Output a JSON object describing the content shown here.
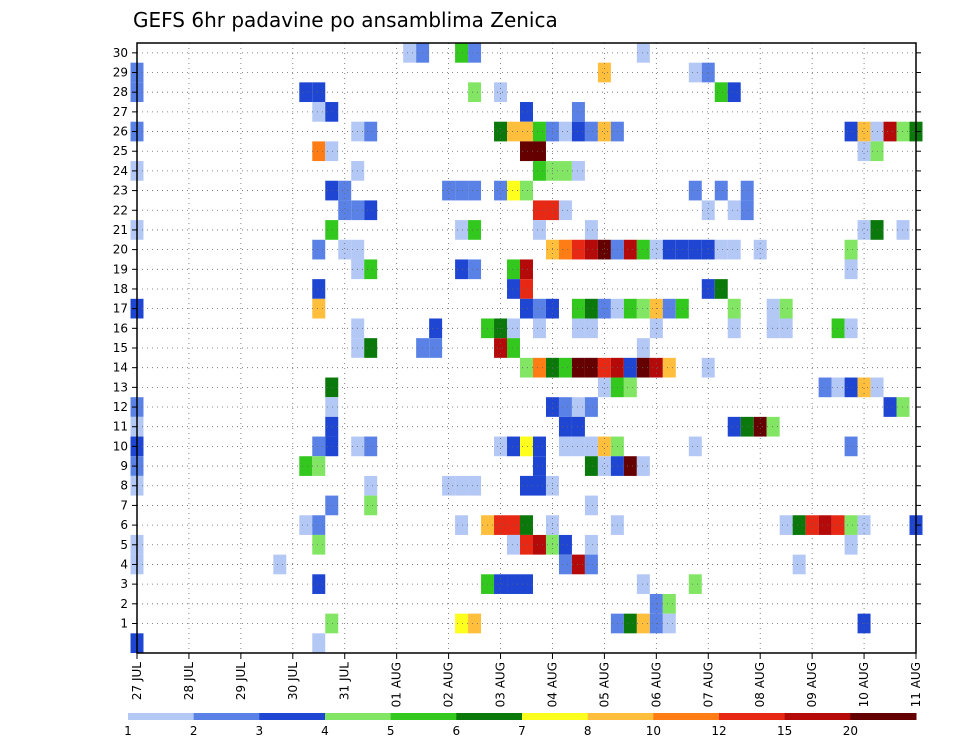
{
  "chart_data": {
    "type": "heatmap",
    "title": "GEFS 6hr padavine po ansamblima Zenica",
    "y_ticks": [
      "1",
      "2",
      "3",
      "4",
      "5",
      "6",
      "7",
      "8",
      "9",
      "10",
      "11",
      "12",
      "13",
      "14",
      "15",
      "16",
      "17",
      "18",
      "19",
      "20",
      "21",
      "22",
      "23",
      "24",
      "25",
      "26",
      "27",
      "28",
      "29",
      "30"
    ],
    "x_ticks": [
      "27 JUL",
      "28 JUL",
      "29 JUL",
      "30 JUL",
      "31 JUL",
      "01 AUG",
      "02 AUG",
      "03 AUG",
      "04 AUG",
      "05 AUG",
      "06 AUG",
      "07 AUG",
      "08 AUG",
      "09 AUG",
      "10 AUG",
      "11 AUG"
    ],
    "x_range": [
      "27 JUL 00Z",
      "11 AUG 00Z"
    ],
    "y_range": [
      1,
      30
    ],
    "steps_per_day": 4,
    "grid": true,
    "colorbar": {
      "labels": [
        "1",
        "2",
        "3",
        "4",
        "5",
        "6",
        "7",
        "8",
        "10",
        "12",
        "15",
        "20"
      ],
      "colors": [
        "#b4c8f5",
        "#5a82e6",
        "#1e46d2",
        "#82e664",
        "#32c81e",
        "#0a780a",
        "#ffff1e",
        "#ffbe3c",
        "#ff7d14",
        "#e62814",
        "#b40a0a",
        "#640000"
      ]
    },
    "cells": [
      {
        "m": 30,
        "t": [
          [
            21,
            1
          ],
          [
            22,
            2
          ],
          [
            25,
            5
          ],
          [
            26,
            2
          ],
          [
            39,
            1
          ]
        ]
      },
      {
        "m": 29,
        "t": [
          [
            0,
            2
          ],
          [
            36,
            8
          ],
          [
            43,
            1
          ],
          [
            44,
            2
          ]
        ]
      },
      {
        "m": 28,
        "t": [
          [
            0,
            2
          ],
          [
            13,
            3
          ],
          [
            14,
            3
          ],
          [
            26,
            4
          ],
          [
            28,
            1
          ],
          [
            45,
            5
          ],
          [
            46,
            3
          ]
        ]
      },
      {
        "m": 27,
        "t": [
          [
            14,
            1
          ],
          [
            15,
            3
          ],
          [
            30,
            3
          ],
          [
            34,
            2
          ]
        ]
      },
      {
        "m": 26,
        "t": [
          [
            0,
            2
          ],
          [
            17,
            1
          ],
          [
            18,
            2
          ],
          [
            28,
            6
          ],
          [
            29,
            8
          ],
          [
            30,
            8
          ],
          [
            31,
            5
          ],
          [
            32,
            2
          ],
          [
            33,
            1
          ],
          [
            34,
            3
          ],
          [
            35,
            2
          ],
          [
            36,
            8
          ],
          [
            37,
            2
          ],
          [
            55,
            3
          ],
          [
            56,
            8
          ],
          [
            57,
            1
          ],
          [
            58,
            11
          ],
          [
            59,
            4
          ],
          [
            60,
            6
          ]
        ]
      },
      {
        "m": 25,
        "t": [
          [
            14,
            9
          ],
          [
            15,
            1
          ],
          [
            30,
            12
          ],
          [
            31,
            12
          ],
          [
            56,
            1
          ],
          [
            57,
            4
          ]
        ]
      },
      {
        "m": 24,
        "t": [
          [
            0,
            1
          ],
          [
            17,
            1
          ],
          [
            31,
            5
          ],
          [
            32,
            4
          ],
          [
            33,
            4
          ],
          [
            34,
            1
          ]
        ]
      },
      {
        "m": 23,
        "t": [
          [
            15,
            3
          ],
          [
            16,
            2
          ],
          [
            24,
            2
          ],
          [
            25,
            2
          ],
          [
            26,
            2
          ],
          [
            28,
            2
          ],
          [
            29,
            7
          ],
          [
            30,
            4
          ],
          [
            43,
            2
          ],
          [
            45,
            2
          ],
          [
            47,
            2
          ]
        ]
      },
      {
        "m": 22,
        "t": [
          [
            16,
            2
          ],
          [
            17,
            2
          ],
          [
            18,
            3
          ],
          [
            31,
            10
          ],
          [
            32,
            10
          ],
          [
            33,
            1
          ],
          [
            44,
            1
          ],
          [
            46,
            1
          ],
          [
            47,
            2
          ]
        ]
      },
      {
        "m": 21,
        "t": [
          [
            0,
            1
          ],
          [
            15,
            5
          ],
          [
            25,
            1
          ],
          [
            26,
            5
          ],
          [
            31,
            1
          ],
          [
            35,
            1
          ],
          [
            56,
            1
          ],
          [
            57,
            6
          ],
          [
            59,
            1
          ]
        ]
      },
      {
        "m": 20,
        "t": [
          [
            14,
            2
          ],
          [
            16,
            1
          ],
          [
            17,
            1
          ],
          [
            32,
            8
          ],
          [
            33,
            9
          ],
          [
            34,
            10
          ],
          [
            35,
            11
          ],
          [
            36,
            12
          ],
          [
            37,
            2
          ],
          [
            38,
            11
          ],
          [
            39,
            5
          ],
          [
            40,
            1
          ],
          [
            41,
            3
          ],
          [
            42,
            3
          ],
          [
            43,
            3
          ],
          [
            44,
            3
          ],
          [
            45,
            1
          ],
          [
            46,
            1
          ],
          [
            48,
            1
          ],
          [
            55,
            4
          ]
        ]
      },
      {
        "m": 19,
        "t": [
          [
            17,
            1
          ],
          [
            18,
            5
          ],
          [
            25,
            3
          ],
          [
            26,
            2
          ],
          [
            29,
            5
          ],
          [
            30,
            11
          ],
          [
            55,
            1
          ]
        ]
      },
      {
        "m": 18,
        "t": [
          [
            14,
            3
          ],
          [
            29,
            3
          ],
          [
            30,
            10
          ],
          [
            44,
            3
          ],
          [
            45,
            6
          ]
        ]
      },
      {
        "m": 17,
        "t": [
          [
            0,
            3
          ],
          [
            14,
            8
          ],
          [
            30,
            3
          ],
          [
            31,
            2
          ],
          [
            32,
            3
          ],
          [
            34,
            5
          ],
          [
            35,
            6
          ],
          [
            36,
            2
          ],
          [
            37,
            1
          ],
          [
            38,
            5
          ],
          [
            39,
            4
          ],
          [
            40,
            8
          ],
          [
            41,
            2
          ],
          [
            42,
            5
          ],
          [
            46,
            4
          ],
          [
            49,
            1
          ],
          [
            50,
            4
          ]
        ]
      },
      {
        "m": 16,
        "t": [
          [
            17,
            1
          ],
          [
            23,
            3
          ],
          [
            27,
            5
          ],
          [
            28,
            6
          ],
          [
            29,
            1
          ],
          [
            31,
            1
          ],
          [
            34,
            1
          ],
          [
            35,
            1
          ],
          [
            40,
            1
          ],
          [
            46,
            1
          ],
          [
            49,
            1
          ],
          [
            50,
            1
          ],
          [
            54,
            5
          ],
          [
            55,
            1
          ]
        ]
      },
      {
        "m": 15,
        "t": [
          [
            17,
            1
          ],
          [
            18,
            6
          ],
          [
            22,
            2
          ],
          [
            23,
            2
          ],
          [
            28,
            11
          ],
          [
            29,
            5
          ],
          [
            39,
            1
          ]
        ]
      },
      {
        "m": 14,
        "t": [
          [
            30,
            4
          ],
          [
            31,
            9
          ],
          [
            32,
            6
          ],
          [
            33,
            5
          ],
          [
            34,
            12
          ],
          [
            35,
            12
          ],
          [
            36,
            10
          ],
          [
            37,
            11
          ],
          [
            38,
            3
          ],
          [
            39,
            12
          ],
          [
            40,
            11
          ],
          [
            41,
            8
          ],
          [
            44,
            1
          ]
        ]
      },
      {
        "m": 13,
        "t": [
          [
            15,
            6
          ],
          [
            36,
            1
          ],
          [
            37,
            5
          ],
          [
            38,
            4
          ],
          [
            53,
            2
          ],
          [
            54,
            1
          ],
          [
            55,
            3
          ],
          [
            56,
            8
          ],
          [
            57,
            1
          ]
        ]
      },
      {
        "m": 12,
        "t": [
          [
            0,
            2
          ],
          [
            15,
            1
          ],
          [
            32,
            3
          ],
          [
            33,
            2
          ],
          [
            34,
            1
          ],
          [
            35,
            2
          ],
          [
            58,
            3
          ],
          [
            59,
            4
          ]
        ]
      },
      {
        "m": 11,
        "t": [
          [
            0,
            1
          ],
          [
            15,
            3
          ],
          [
            33,
            3
          ],
          [
            34,
            3
          ],
          [
            46,
            3
          ],
          [
            47,
            6
          ],
          [
            48,
            12
          ],
          [
            49,
            4
          ]
        ]
      },
      {
        "m": 10,
        "t": [
          [
            0,
            3
          ],
          [
            14,
            2
          ],
          [
            15,
            3
          ],
          [
            17,
            1
          ],
          [
            18,
            2
          ],
          [
            28,
            1
          ],
          [
            29,
            3
          ],
          [
            30,
            7
          ],
          [
            31,
            3
          ],
          [
            33,
            1
          ],
          [
            34,
            1
          ],
          [
            35,
            1
          ],
          [
            36,
            8
          ],
          [
            37,
            4
          ],
          [
            43,
            1
          ],
          [
            55,
            2
          ]
        ]
      },
      {
        "m": 9,
        "t": [
          [
            0,
            2
          ],
          [
            13,
            5
          ],
          [
            14,
            4
          ],
          [
            31,
            3
          ],
          [
            35,
            6
          ],
          [
            36,
            1
          ],
          [
            37,
            3
          ],
          [
            38,
            12
          ],
          [
            39,
            1
          ]
        ]
      },
      {
        "m": 8,
        "t": [
          [
            0,
            1
          ],
          [
            18,
            1
          ],
          [
            24,
            1
          ],
          [
            25,
            1
          ],
          [
            26,
            1
          ],
          [
            30,
            3
          ],
          [
            31,
            3
          ],
          [
            32,
            1
          ]
        ]
      },
      {
        "m": 7,
        "t": [
          [
            15,
            2
          ],
          [
            18,
            4
          ],
          [
            35,
            1
          ]
        ]
      },
      {
        "m": 6,
        "t": [
          [
            13,
            1
          ],
          [
            14,
            2
          ],
          [
            25,
            1
          ],
          [
            27,
            8
          ],
          [
            28,
            10
          ],
          [
            29,
            10
          ],
          [
            30,
            6
          ],
          [
            32,
            1
          ],
          [
            37,
            1
          ],
          [
            50,
            1
          ],
          [
            51,
            6
          ],
          [
            52,
            10
          ],
          [
            53,
            11
          ],
          [
            54,
            10
          ],
          [
            55,
            4
          ],
          [
            56,
            1
          ],
          [
            60,
            3
          ]
        ]
      },
      {
        "m": 5,
        "t": [
          [
            0,
            1
          ],
          [
            14,
            4
          ],
          [
            29,
            1
          ],
          [
            30,
            10
          ],
          [
            31,
            11
          ],
          [
            32,
            4
          ],
          [
            33,
            3
          ],
          [
            35,
            1
          ],
          [
            55,
            1
          ]
        ]
      },
      {
        "m": 4,
        "t": [
          [
            0,
            1
          ],
          [
            11,
            1
          ],
          [
            33,
            2
          ],
          [
            34,
            11
          ],
          [
            35,
            2
          ],
          [
            51,
            1
          ]
        ]
      },
      {
        "m": 3,
        "t": [
          [
            14,
            3
          ],
          [
            27,
            5
          ],
          [
            28,
            3
          ],
          [
            29,
            3
          ],
          [
            30,
            3
          ],
          [
            39,
            1
          ],
          [
            43,
            4
          ]
        ]
      },
      {
        "m": 2,
        "t": [
          [
            40,
            2
          ],
          [
            41,
            4
          ]
        ]
      },
      {
        "m": 1,
        "t": [
          [
            15,
            4
          ],
          [
            25,
            7
          ],
          [
            26,
            8
          ],
          [
            37,
            2
          ],
          [
            38,
            6
          ],
          [
            39,
            8
          ],
          [
            40,
            2
          ],
          [
            41,
            1
          ],
          [
            56,
            3
          ]
        ]
      },
      {
        "m": 0,
        "t": [
          [
            0,
            3
          ],
          [
            14,
            1
          ]
        ]
      }
    ]
  }
}
